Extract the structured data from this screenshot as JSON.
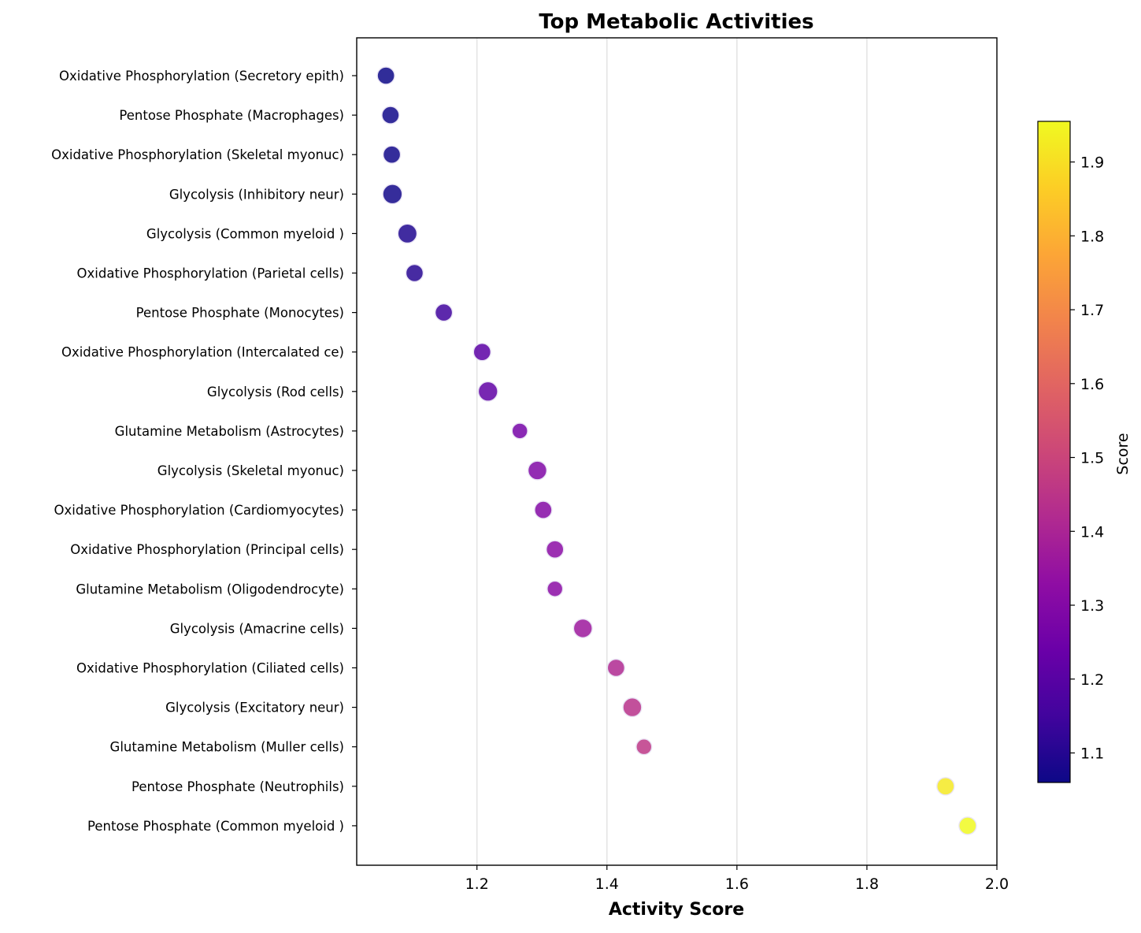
{
  "chart_data": {
    "type": "scatter",
    "title": "Top Metabolic Activities",
    "xlabel": "Activity Score",
    "ylabel": "",
    "xlim": [
      1.015,
      2.0
    ],
    "xticks": [
      1.2,
      1.4,
      1.6,
      1.8,
      2.0
    ],
    "xtick_labels": [
      "1.2",
      "1.4",
      "1.6",
      "1.8",
      "2.0"
    ],
    "grid": "x-axis only",
    "colormap": "plasma",
    "colorbar": {
      "label": "Score",
      "range": [
        1.06,
        1.955
      ],
      "ticks": [
        1.1,
        1.2,
        1.3,
        1.4,
        1.5,
        1.6,
        1.7,
        1.8,
        1.9
      ],
      "tick_labels": [
        "1.1",
        "1.2",
        "1.3",
        "1.4",
        "1.5",
        "1.6",
        "1.7",
        "1.8",
        "1.9"
      ]
    },
    "categories": [
      "Oxidative Phosphorylation (Secretory epith)",
      "Pentose Phosphate (Macrophages)",
      "Oxidative Phosphorylation (Skeletal myonuc)",
      "Glycolysis (Inhibitory neur)",
      "Glycolysis (Common myeloid )",
      "Oxidative Phosphorylation (Parietal cells)",
      "Pentose Phosphate (Monocytes)",
      "Oxidative Phosphorylation (Intercalated ce)",
      "Glycolysis (Rod cells)",
      "Glutamine Metabolism (Astrocytes)",
      "Glycolysis (Skeletal myonuc)",
      "Oxidative Phosphorylation (Cardiomyocytes)",
      "Oxidative Phosphorylation (Principal cells)",
      "Glutamine Metabolism (Oligodendrocyte)",
      "Glycolysis (Amacrine cells)",
      "Oxidative Phosphorylation (Ciliated cells)",
      "Glycolysis (Excitatory neur)",
      "Glutamine Metabolism (Muller cells)",
      "Pentose Phosphate (Neutrophils)",
      "Pentose Phosphate (Common myeloid )"
    ],
    "values": [
      1.06,
      1.067,
      1.069,
      1.07,
      1.093,
      1.104,
      1.149,
      1.208,
      1.217,
      1.266,
      1.293,
      1.302,
      1.32,
      1.32,
      1.363,
      1.414,
      1.439,
      1.457,
      1.921,
      1.955
    ],
    "marker_sizes": [
      1.0,
      1.0,
      1.0,
      1.12,
      1.1,
      1.0,
      1.0,
      1.0,
      1.12,
      0.9,
      1.08,
      1.0,
      1.0,
      0.9,
      1.08,
      1.0,
      1.08,
      0.9,
      1.0,
      1.0
    ]
  }
}
